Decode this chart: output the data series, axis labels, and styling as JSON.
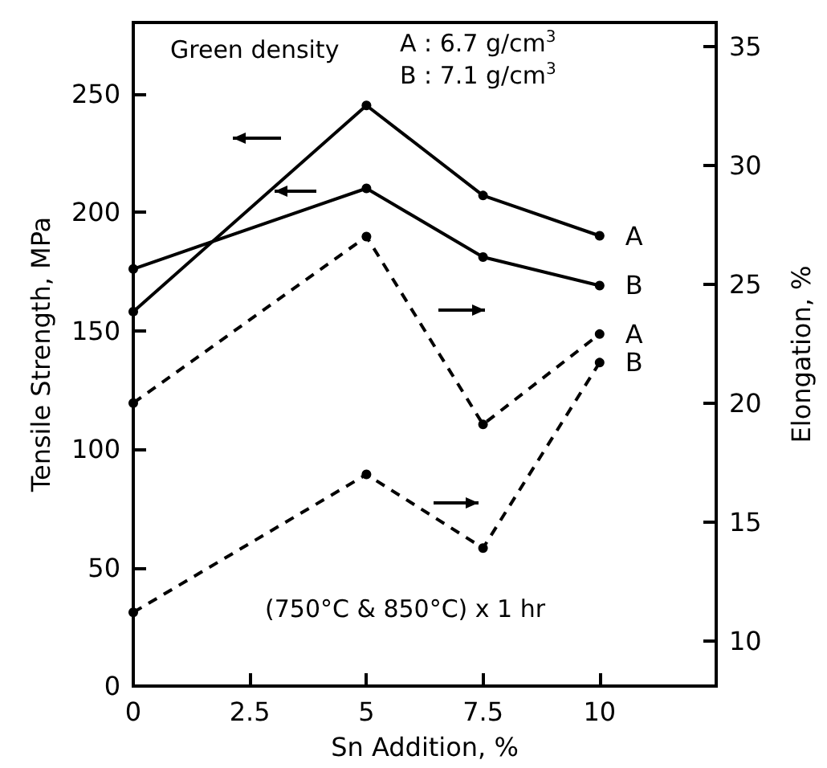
{
  "chart_data": {
    "type": "line",
    "xlabel": "Sn Addition, %",
    "ylabel": "Tensile Strength, MPa",
    "y2label": "Elongation, %",
    "x": [
      0,
      5,
      7.5,
      10
    ],
    "series": [
      {
        "name": "A",
        "color": "#000000",
        "values": [
          158,
          245,
          207,
          190
        ],
        "line_style": "solid"
      },
      {
        "name": "B",
        "color": "#000000",
        "values": [
          176,
          210,
          181,
          169
        ],
        "line_style": "solid"
      },
      {
        "name": "A",
        "color": "#000000",
        "values": [
          20.0,
          27.0,
          19.1,
          22.9
        ],
        "line_style": "dashed",
        "axis": "y2"
      },
      {
        "name": "B",
        "color": "#000000",
        "values": [
          11.2,
          17.0,
          13.9,
          21.7
        ],
        "line_style": "dashed",
        "axis": "y2"
      }
    ],
    "xlim": [
      0,
      12.5
    ],
    "xticks": [
      0,
      2.5,
      5,
      7.5,
      10
    ],
    "ylim": [
      0,
      280
    ],
    "yticks": [
      0,
      50,
      100,
      150,
      200,
      250
    ],
    "y2lim": [
      8.1,
      36
    ],
    "y2ticks": [
      10,
      15,
      20,
      25,
      30,
      35
    ],
    "annotations": [
      "Green density",
      "A : 6.7 g/cm$^{3}$",
      "B : 7.1 g/cm$^{3}$",
      "(750°C & 850°C) x 1 hr"
    ],
    "marker": "circle",
    "grid": false,
    "legend": false
  }
}
